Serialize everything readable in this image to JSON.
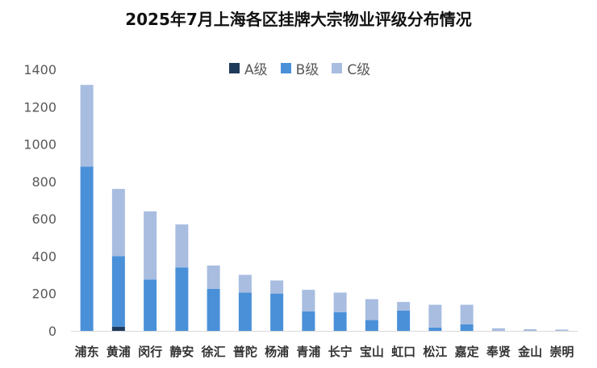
{
  "chart_data": {
    "type": "bar",
    "stacked": true,
    "title": "2025年7月上海各区挂牌大宗物业评级分布情况",
    "categories": [
      "浦东",
      "黄浦",
      "闵行",
      "静安",
      "徐汇",
      "普陀",
      "杨浦",
      "青浦",
      "长宁",
      "宝山",
      "虹口",
      "松江",
      "嘉定",
      "奉贤",
      "金山",
      "崇明"
    ],
    "series": [
      {
        "name": "A级",
        "color": "#1f3b5c",
        "values": [
          0,
          22,
          0,
          0,
          0,
          0,
          0,
          0,
          0,
          0,
          0,
          0,
          0,
          0,
          0,
          0
        ]
      },
      {
        "name": "B级",
        "color": "#4a90d9",
        "values": [
          880,
          378,
          275,
          340,
          225,
          205,
          200,
          105,
          100,
          58,
          108,
          18,
          35,
          0,
          0,
          0
        ]
      },
      {
        "name": "C级",
        "color": "#a8bde0",
        "values": [
          437,
          360,
          365,
          230,
          125,
          95,
          70,
          115,
          105,
          112,
          47,
          122,
          105,
          14,
          9,
          7
        ]
      }
    ],
    "yticks": [
      0,
      200,
      400,
      600,
      800,
      1000,
      1200,
      1400
    ],
    "ylim": [
      0,
      1400
    ],
    "legend_position": "top-center",
    "grid": false
  }
}
